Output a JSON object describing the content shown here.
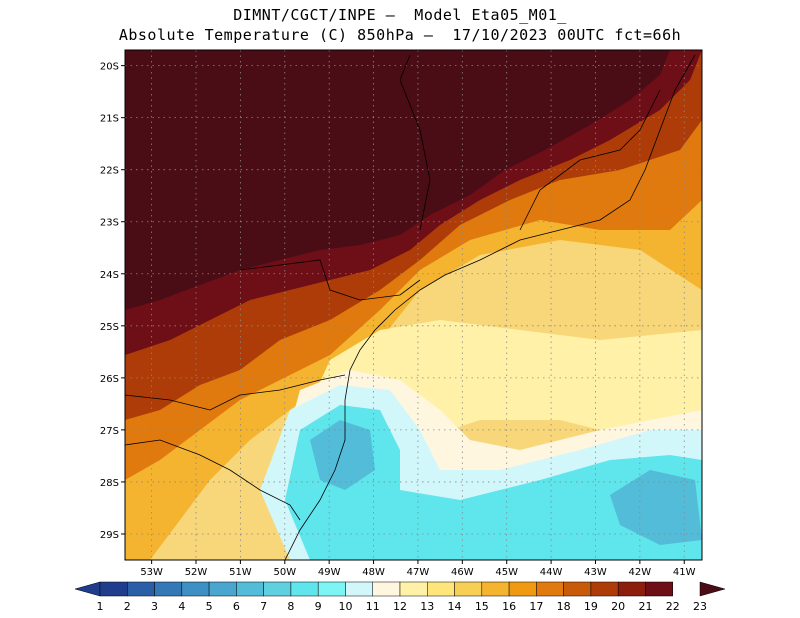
{
  "title_line1": "DIMNT/CGCT/INPE –  Model Eta05_M01_",
  "title_line2": "Absolute Temperature (C) 850hPa –  17/10/2023 00UTC fct=66h",
  "lat_labels": [
    "20S",
    "21S",
    "22S",
    "23S",
    "24S",
    "25S",
    "26S",
    "27S",
    "28S",
    "29S"
  ],
  "lon_labels": [
    "53W",
    "52W",
    "51W",
    "50W",
    "49W",
    "48W",
    "47W",
    "46W",
    "45W",
    "44W",
    "43W",
    "42W",
    "41W"
  ],
  "lat_range": [
    -29.5,
    -19.7
  ],
  "lon_range": [
    -53.6,
    -40.6
  ],
  "colorbar_labels": [
    "1",
    "2",
    "3",
    "4",
    "5",
    "6",
    "7",
    "8",
    "9",
    "10",
    "11",
    "12",
    "13",
    "14",
    "15",
    "16",
    "17",
    "18",
    "19",
    "20",
    "21",
    "22",
    "23"
  ],
  "colorbar_colors": [
    "#1f3d8c",
    "#1f3d8c",
    "#2a5fa8",
    "#3478b8",
    "#3e8fc4",
    "#4aa5cf",
    "#53bcd8",
    "#5fd0e0",
    "#5fe5ec",
    "#7ef5f5",
    "#d2f7fb",
    "#fff6e0",
    "#fff2a8",
    "#ffe57a",
    "#f7cf55",
    "#f5b430",
    "#f09a12",
    "#e07a0e",
    "#c95a0a",
    "#ad3c08",
    "#8c1e0c",
    "#6e0e16",
    "#4a0d16"
  ]
}
